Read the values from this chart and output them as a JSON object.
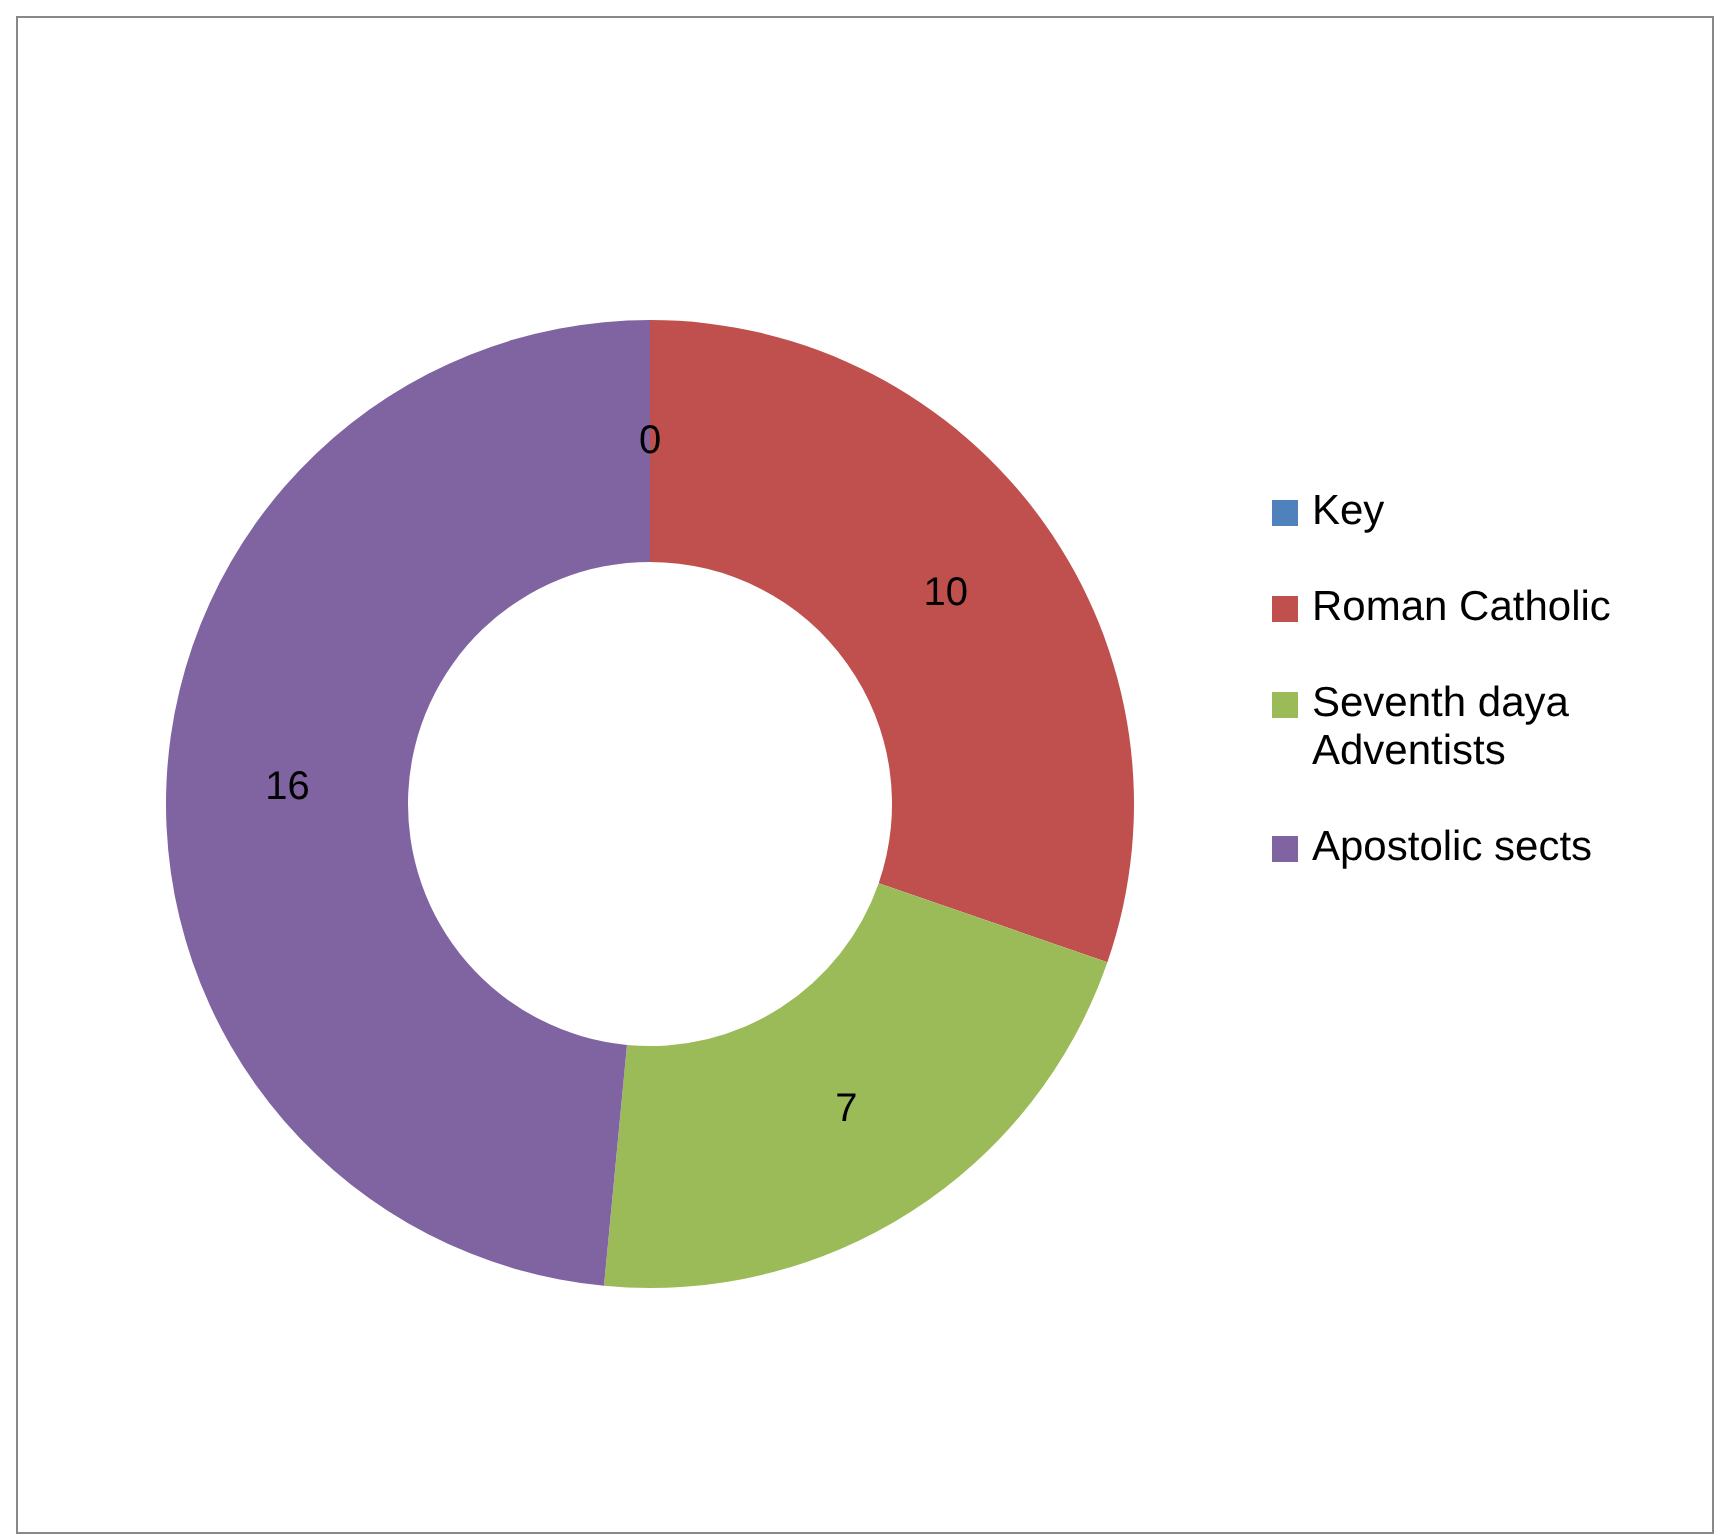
{
  "chart_data": {
    "type": "donut",
    "categories": [
      "Key",
      "Roman Catholic",
      "Seventh daya Adventists",
      "Apostolic sects"
    ],
    "values": [
      0,
      10,
      7,
      16
    ],
    "colors": [
      "#4f81bd",
      "#c0504d",
      "#9bbb59",
      "#8064a2"
    ],
    "value_labels": [
      "0",
      "10",
      "7",
      "16"
    ],
    "legend": "right"
  }
}
